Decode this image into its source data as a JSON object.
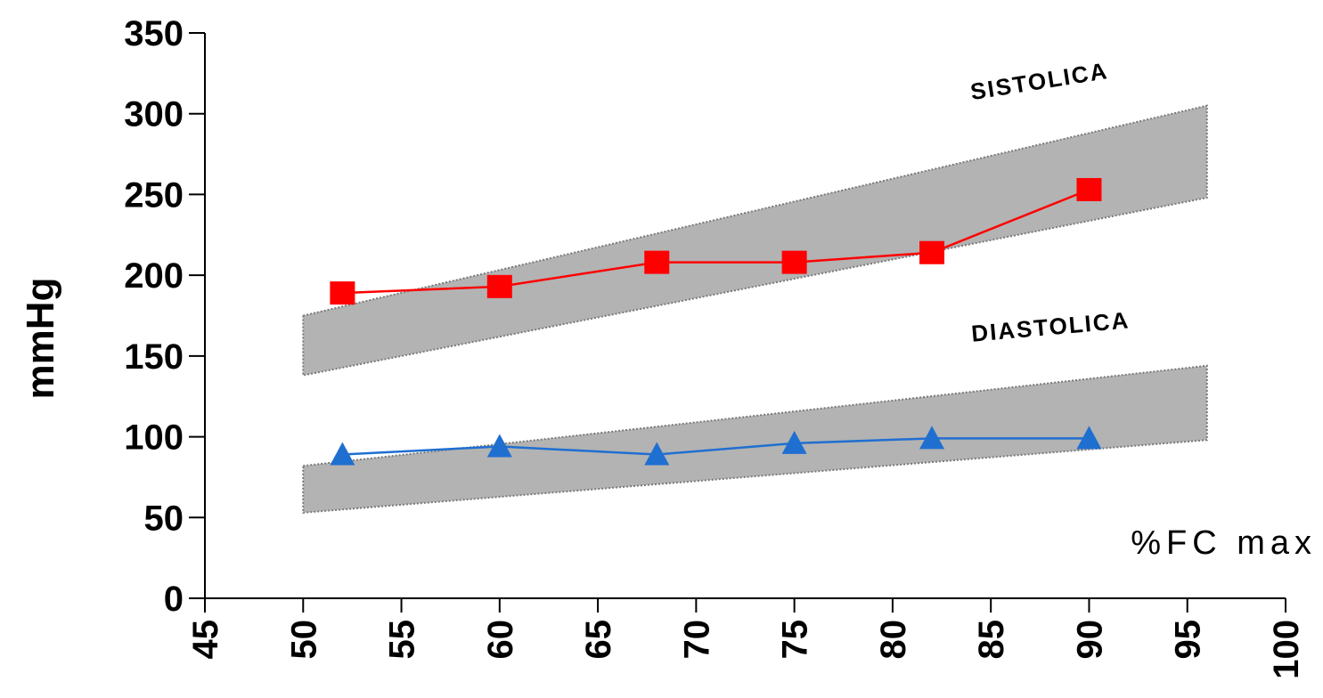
{
  "chart_data": {
    "type": "line",
    "title": "",
    "xlabel": "%FC max",
    "ylabel": "mmHg",
    "xlim": [
      45,
      100
    ],
    "ylim": [
      0,
      350
    ],
    "xticks": [
      "45",
      "50",
      "55",
      "60",
      "65",
      "70",
      "75",
      "80",
      "85",
      "90",
      "95",
      "100"
    ],
    "yticks": [
      "0",
      "50",
      "100",
      "150",
      "200",
      "250",
      "300",
      "350"
    ],
    "grid": false,
    "legend": "none",
    "bands": [
      {
        "label": "SISTOLICA",
        "x": [
          50,
          96
        ],
        "upper": [
          175,
          305
        ],
        "lower": [
          138,
          248
        ],
        "color": "#b3b3b3"
      },
      {
        "label": "DIASTOLICA",
        "x": [
          50,
          96
        ],
        "upper": [
          82,
          144
        ],
        "lower": [
          53,
          98
        ],
        "color": "#b3b3b3"
      }
    ],
    "series": [
      {
        "marker": "square",
        "color": "#ff0000",
        "x": [
          52,
          60,
          68,
          75,
          82,
          90
        ],
        "y": [
          189,
          193,
          208,
          208,
          214,
          253
        ]
      },
      {
        "marker": "triangle",
        "color": "#1f6fd1",
        "x": [
          52,
          60,
          68,
          75,
          82,
          90
        ],
        "y": [
          89,
          94,
          89,
          96,
          99,
          99
        ]
      }
    ]
  }
}
